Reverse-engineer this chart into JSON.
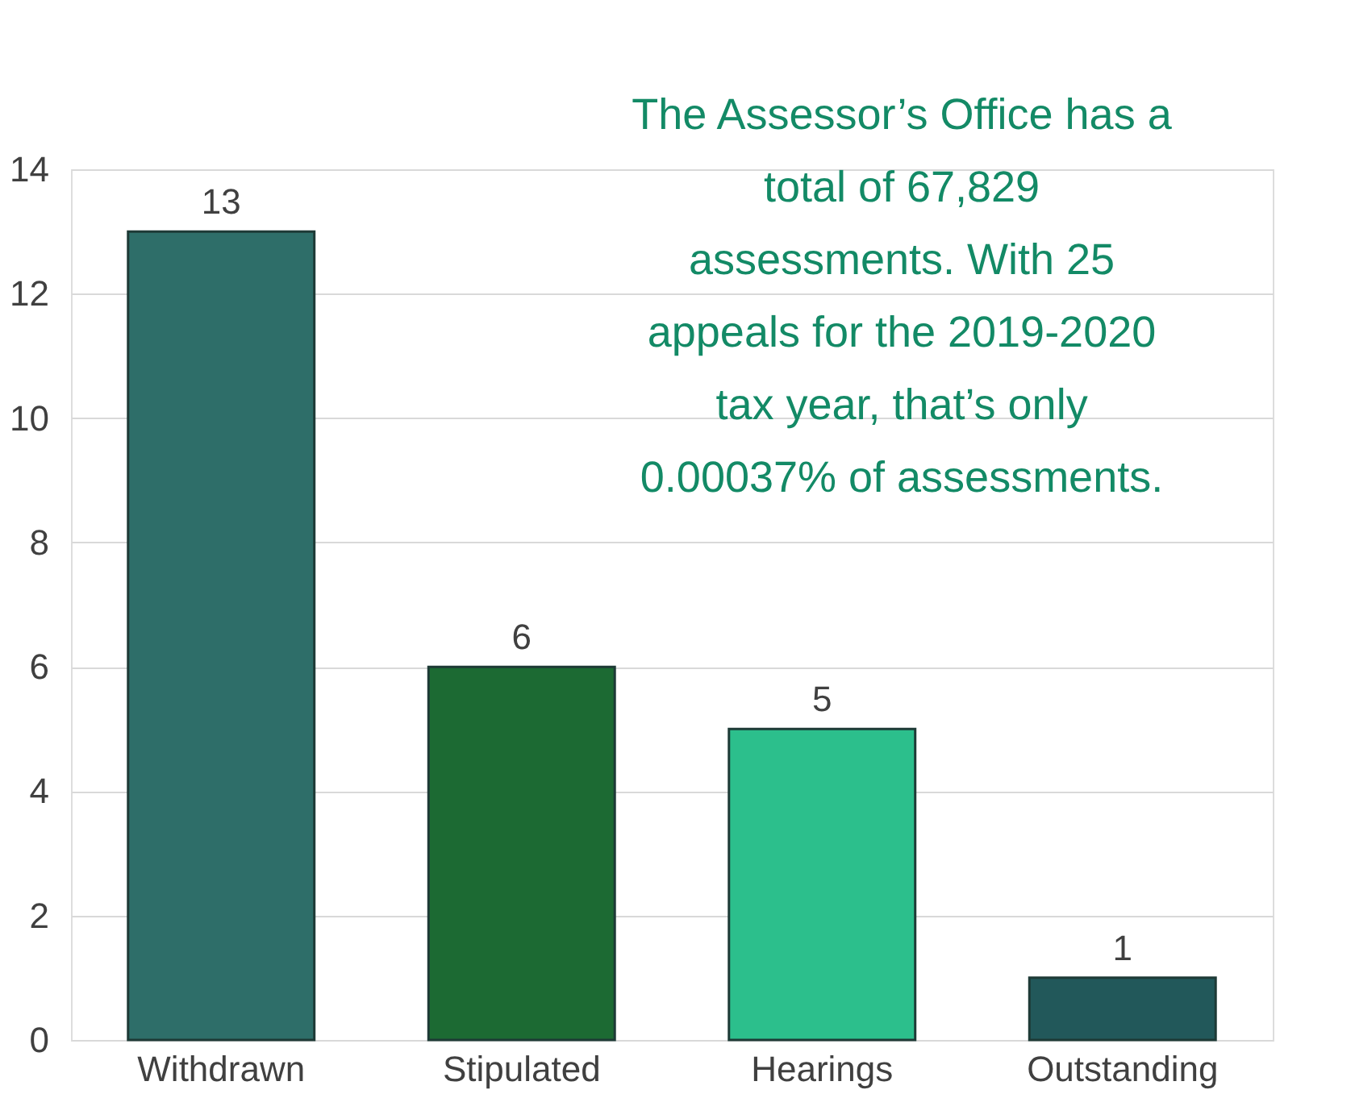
{
  "chart_data": {
    "type": "bar",
    "categories": [
      "Withdrawn",
      "Stipulated",
      "Hearings",
      "Outstanding"
    ],
    "values": [
      13,
      6,
      5,
      1
    ],
    "colors": [
      "#2e6e69",
      "#1c6a33",
      "#2cbf8c",
      "#22585a"
    ],
    "ylim": [
      0,
      14
    ],
    "yticks": [
      0,
      2,
      4,
      6,
      8,
      10,
      12,
      14
    ],
    "grid": "y",
    "data_labels": true,
    "annotations": [
      "The Assessor’s Office has a total of 67,829 assessments. With 25 appeals for the 2019-2020 tax year, that’s only 0.00037% of assessments."
    ]
  }
}
